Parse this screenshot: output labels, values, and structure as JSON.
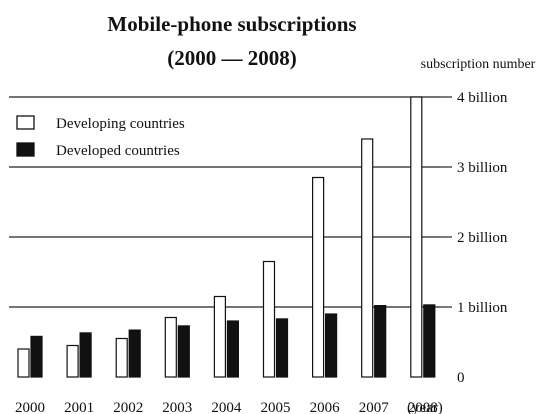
{
  "chart_data": {
    "type": "bar",
    "title": "Mobile-phone subscriptions",
    "subtitle": "(2000 — 2008)",
    "ylabel": "subscription number",
    "x_unit_suffix": "(year)",
    "categories": [
      "2000",
      "2001",
      "2002",
      "2003",
      "2004",
      "2005",
      "2006",
      "2007",
      "2008"
    ],
    "series": [
      {
        "name": "Developing countries",
        "color": "#ffffff",
        "values": [
          0.4,
          0.45,
          0.55,
          0.85,
          1.15,
          1.65,
          2.85,
          3.4,
          4.0
        ]
      },
      {
        "name": "Developed countries",
        "color": "#111111",
        "values": [
          0.58,
          0.63,
          0.67,
          0.73,
          0.8,
          0.83,
          0.9,
          1.02,
          1.03
        ]
      }
    ],
    "ylim": [
      0,
      4
    ],
    "yticks": [
      {
        "value": 0,
        "label": "0"
      },
      {
        "value": 1,
        "label": "1 billion"
      },
      {
        "value": 2,
        "label": "2 billion"
      },
      {
        "value": 3,
        "label": "3 billion"
      },
      {
        "value": 4,
        "label": "4 billion"
      }
    ],
    "grid": true,
    "legend_position": "top-left"
  }
}
